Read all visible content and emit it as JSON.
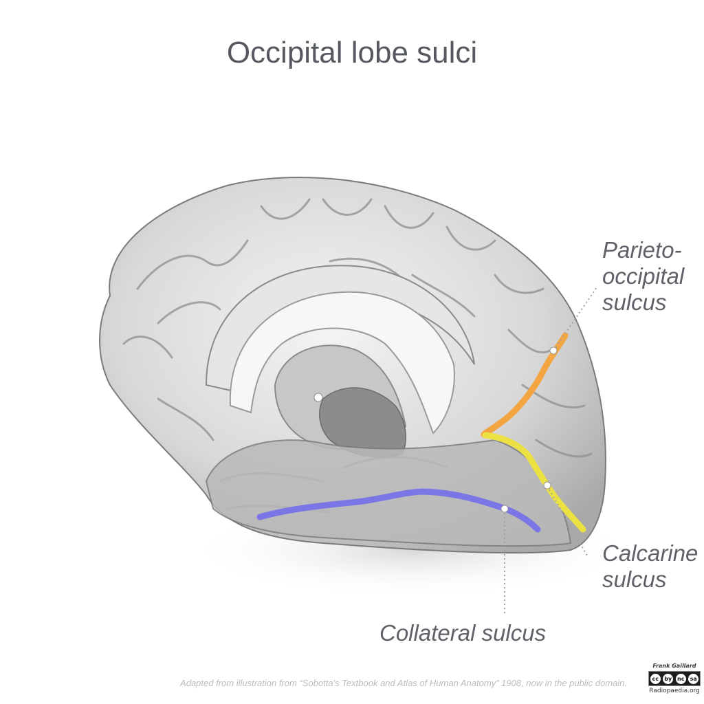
{
  "title": "Occipital lobe sulci",
  "labels": {
    "parieto_occipital": [
      "Parieto-",
      "occipital",
      "sulcus"
    ],
    "calcarine": [
      "Calcarine",
      "sulcus"
    ],
    "collateral": "Collateral sulcus"
  },
  "colors": {
    "parieto_occipital": "#f2a541",
    "calcarine": "#ebe142",
    "collateral": "#7b76e6",
    "label_text": "#5e6167"
  },
  "caption": "Adapted from illustration from “Sobotta's Textbook and Atlas of Human Anatomy” 1908, now in the public domain.",
  "credit": {
    "author": "Frank Gaillard",
    "license_icons": [
      "cc",
      "by",
      "nc",
      "sa"
    ],
    "site": "Radiopaedia.org"
  }
}
